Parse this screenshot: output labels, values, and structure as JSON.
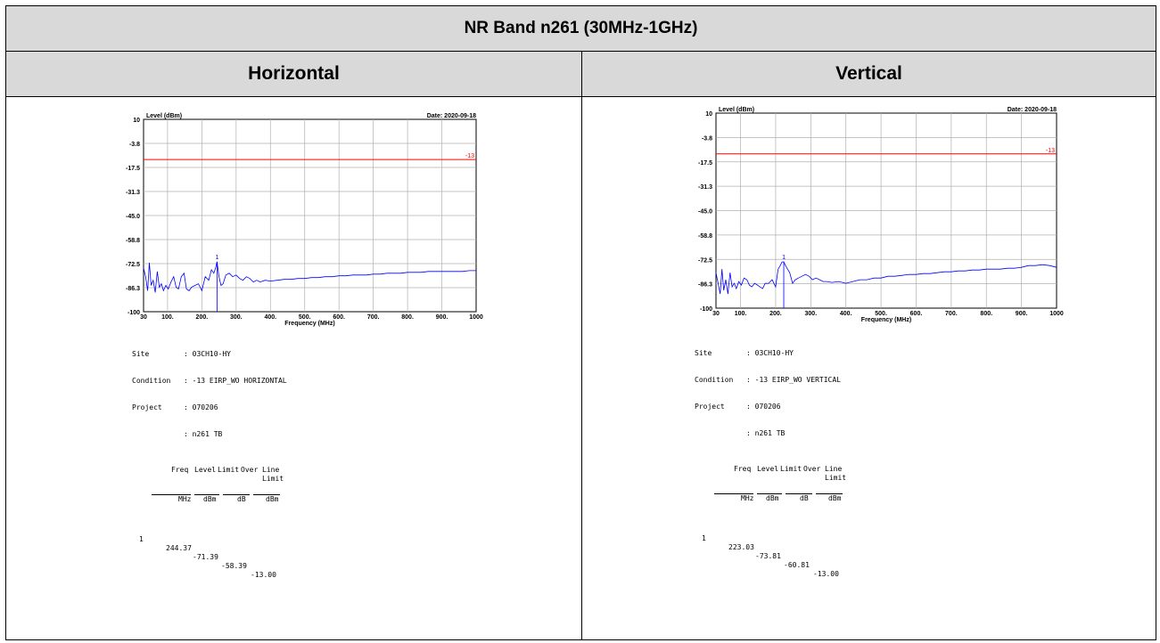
{
  "header": {
    "title": "NR Band n261 (30MHz-1GHz)",
    "col_left": "Horizontal",
    "col_right": "Vertical"
  },
  "colors": {
    "trace": "#0000ff",
    "limit": "#ff0000",
    "grid": "#b0b0b0"
  },
  "chart_data": [
    {
      "type": "line",
      "ylabel": "Level (dBm)",
      "xlabel": "Frequency (MHz)",
      "date": "Date: 2020-09-18",
      "ylim": [
        -100,
        10
      ],
      "xlim": [
        30,
        1000
      ],
      "y_ticks": [
        "10",
        "-3.8",
        "-17.5",
        "-31.3",
        "-45.0",
        "-58.8",
        "-72.5",
        "-86.3",
        "-100"
      ],
      "x_ticks": [
        "30",
        "100.",
        "200.",
        "300.",
        "400.",
        "500.",
        "600.",
        "700.",
        "800.",
        "900.",
        "1000"
      ],
      "limit": {
        "value": -13,
        "label": "-13"
      },
      "marker": {
        "label": "1",
        "freq": 244.37,
        "level": -71.39
      },
      "series": [
        {
          "x": [
            30,
            36,
            42,
            47,
            52,
            58,
            64,
            70,
            76,
            82,
            88,
            95,
            102,
            110,
            118,
            125,
            132,
            140,
            148,
            155,
            163,
            170,
            180,
            190,
            200,
            210,
            220,
            228,
            235,
            240,
            244.37,
            250,
            256,
            262,
            270,
            280,
            290,
            300,
            310,
            320,
            330,
            340,
            350,
            360,
            370,
            385,
            400,
            420,
            440,
            460,
            480,
            500,
            520,
            540,
            560,
            580,
            600,
            620,
            640,
            660,
            680,
            700,
            720,
            740,
            760,
            780,
            800,
            820,
            840,
            860,
            880,
            900,
            920,
            940,
            960,
            980,
            1000
          ],
          "y": [
            -75,
            -80,
            -88,
            -72,
            -85,
            -82,
            -89,
            -77,
            -86,
            -84,
            -88,
            -85,
            -87,
            -83,
            -80,
            -86,
            -87,
            -80,
            -78,
            -87,
            -88,
            -86,
            -85,
            -84,
            -88,
            -80,
            -82,
            -76,
            -78,
            -75,
            -71.39,
            -80,
            -85,
            -84,
            -79,
            -78,
            -80,
            -79,
            -81,
            -82,
            -80,
            -81,
            -83,
            -82,
            -83,
            -82,
            -82.5,
            -82,
            -81.5,
            -81.5,
            -81,
            -81,
            -80.5,
            -80.5,
            -80,
            -80,
            -79.5,
            -79.5,
            -79,
            -79,
            -79,
            -78.5,
            -78.5,
            -78,
            -78,
            -78,
            -77.5,
            -77.5,
            -77.5,
            -77,
            -77,
            -77,
            -77,
            -77,
            -77,
            -76.5,
            -76.5
          ]
        }
      ]
    },
    {
      "type": "line",
      "ylabel": "Level (dBm)",
      "xlabel": "Frequency (MHz)",
      "date": "Date: 2020-09-18",
      "ylim": [
        -100,
        10
      ],
      "xlim": [
        30,
        1000
      ],
      "y_ticks": [
        "10",
        "-3.8",
        "-17.5",
        "-31.3",
        "-45.0",
        "-58.8",
        "-72.5",
        "-86.3",
        "-100"
      ],
      "x_ticks": [
        "30",
        "100.",
        "200.",
        "300.",
        "400.",
        "500.",
        "600.",
        "700.",
        "800.",
        "900.",
        "1000"
      ],
      "limit": {
        "value": -13,
        "label": "-13"
      },
      "marker": {
        "label": "1",
        "freq": 223.03,
        "level": -73.81
      },
      "series": [
        {
          "x": [
            30,
            36,
            42,
            47,
            52,
            58,
            64,
            70,
            76,
            82,
            88,
            95,
            102,
            110,
            118,
            125,
            132,
            140,
            148,
            155,
            163,
            170,
            180,
            190,
            200,
            207,
            213,
            218,
            223.03,
            228,
            234,
            240,
            248,
            256,
            265,
            275,
            285,
            295,
            305,
            315,
            325,
            335,
            345,
            360,
            380,
            400,
            420,
            440,
            460,
            480,
            500,
            520,
            540,
            560,
            580,
            600,
            620,
            640,
            660,
            680,
            700,
            720,
            740,
            760,
            780,
            800,
            820,
            840,
            860,
            880,
            900,
            920,
            940,
            960,
            980,
            1000
          ],
          "y": [
            -80,
            -86,
            -92,
            -78,
            -90,
            -84,
            -92,
            -80,
            -88,
            -86,
            -89,
            -85,
            -87,
            -83,
            -84,
            -87,
            -88,
            -86,
            -87,
            -88,
            -89,
            -86,
            -86,
            -84,
            -88,
            -78,
            -76,
            -74,
            -73.81,
            -76,
            -78,
            -80,
            -86,
            -84,
            -83,
            -82,
            -81,
            -82,
            -84,
            -83,
            -84,
            -85,
            -85,
            -85.5,
            -85,
            -86,
            -85,
            -84,
            -84,
            -83,
            -83,
            -82,
            -82,
            -81.5,
            -81,
            -81,
            -80.5,
            -80.5,
            -80,
            -79.5,
            -79.5,
            -79,
            -79,
            -78.5,
            -78.5,
            -78,
            -78,
            -78,
            -77.5,
            -77.5,
            -77,
            -76,
            -76,
            -75.5,
            -76,
            -77
          ]
        }
      ]
    }
  ],
  "info_left": {
    "site_label": "Site",
    "site_value": ": 03CH10-HY",
    "condition_label": "Condition",
    "condition_value": ": -13 EIRP_WO HORIZONTAL",
    "project_label": "Project",
    "project_value": ": 070206",
    "tb_value": ": n261 TB",
    "col_headers": {
      "over": "Over",
      "limit": "Limit",
      "freq": "Freq",
      "level": "Level",
      "limit2": "Limit",
      "line": "Line"
    },
    "units": {
      "freq": "MHz",
      "level": "dBm",
      "over": "dB",
      "line": "dBm"
    },
    "row": {
      "index": "1",
      "freq": "244.37",
      "level": "-71.39",
      "over": "-58.39",
      "line": "-13.00"
    }
  },
  "info_right": {
    "site_label": "Site",
    "site_value": ": 03CH10-HY",
    "condition_label": "Condition",
    "condition_value": ": -13 EIRP_WO VERTICAL",
    "project_label": "Project",
    "project_value": ": 070206",
    "tb_value": ": n261 TB",
    "col_headers": {
      "over": "Over",
      "limit": "Limit",
      "freq": "Freq",
      "level": "Level",
      "limit2": "Limit",
      "line": "Line"
    },
    "units": {
      "freq": "MHz",
      "level": "dBm",
      "over": "dB",
      "line": "dBm"
    },
    "row": {
      "index": "1",
      "freq": "223.03",
      "level": "-73.81",
      "over": "-60.81",
      "line": "-13.00"
    }
  }
}
